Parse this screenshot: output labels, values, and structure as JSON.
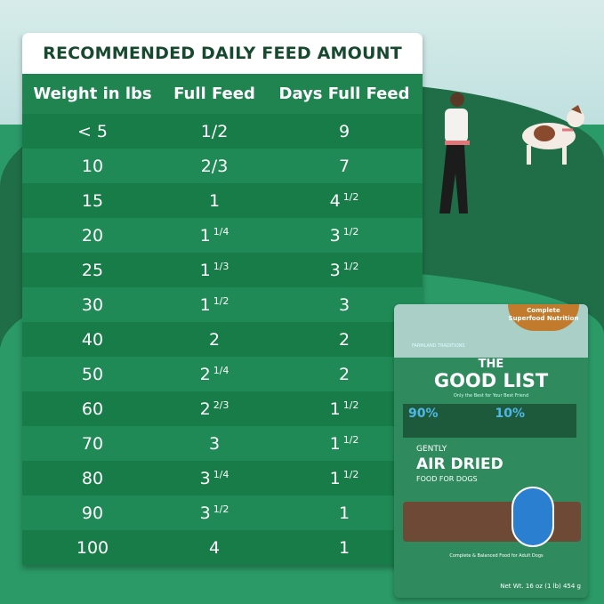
{
  "title": "RECOMMENDED DAILY FEED AMOUNT",
  "columns": [
    "Weight in lbs",
    "Full Feed",
    "Days Full Feed"
  ],
  "rows": [
    {
      "weight": "< 5",
      "feed": "1/2",
      "feed_frac": "",
      "days": "9",
      "days_frac": ""
    },
    {
      "weight": "10",
      "feed": "2/3",
      "feed_frac": "",
      "days": "7",
      "days_frac": ""
    },
    {
      "weight": "15",
      "feed": "1",
      "feed_frac": "",
      "days": "4",
      "days_frac": "1/2"
    },
    {
      "weight": "20",
      "feed": "1",
      "feed_frac": "1/4",
      "days": "3",
      "days_frac": "1/2"
    },
    {
      "weight": "25",
      "feed": "1",
      "feed_frac": "1/3",
      "days": "3",
      "days_frac": "1/2"
    },
    {
      "weight": "30",
      "feed": "1",
      "feed_frac": "1/2",
      "days": "3",
      "days_frac": ""
    },
    {
      "weight": "40",
      "feed": "2",
      "feed_frac": "",
      "days": "2",
      "days_frac": ""
    },
    {
      "weight": "50",
      "feed": "2",
      "feed_frac": "1/4",
      "days": "2",
      "days_frac": ""
    },
    {
      "weight": "60",
      "feed": "2",
      "feed_frac": "2/3",
      "days": "1",
      "days_frac": "1/2"
    },
    {
      "weight": "70",
      "feed": "3",
      "feed_frac": "",
      "days": "1",
      "days_frac": "1/2"
    },
    {
      "weight": "80",
      "feed": "3",
      "feed_frac": "1/4",
      "days": "1",
      "days_frac": "1/2"
    },
    {
      "weight": "90",
      "feed": "3",
      "feed_frac": "1/2",
      "days": "1",
      "days_frac": ""
    },
    {
      "weight": "100",
      "feed": "4",
      "feed_frac": "",
      "days": "1",
      "days_frac": ""
    }
  ],
  "package": {
    "badge": "Complete Superfood Nutrition",
    "maker": "FARMLAND TRADITIONS",
    "brand_line1": "THE",
    "brand_line2": "GOOD LIST",
    "tagline": "Only the Best for Your Best Friend",
    "pct_meat": "90%",
    "pct_super": "10%",
    "gently": "GENTLY",
    "air_dried": "AIR DRIED",
    "food_for_dogs": "FOOD FOR DOGS",
    "balanced": "Complete & Balanced Food for Adult Dogs",
    "net_wt": "Net Wt. 16 oz (1 lb) 454 g"
  },
  "colors": {
    "header": "#1f8450",
    "row_dark": "#177c47",
    "row_light": "#1f8a55",
    "title_text": "#17492f"
  }
}
